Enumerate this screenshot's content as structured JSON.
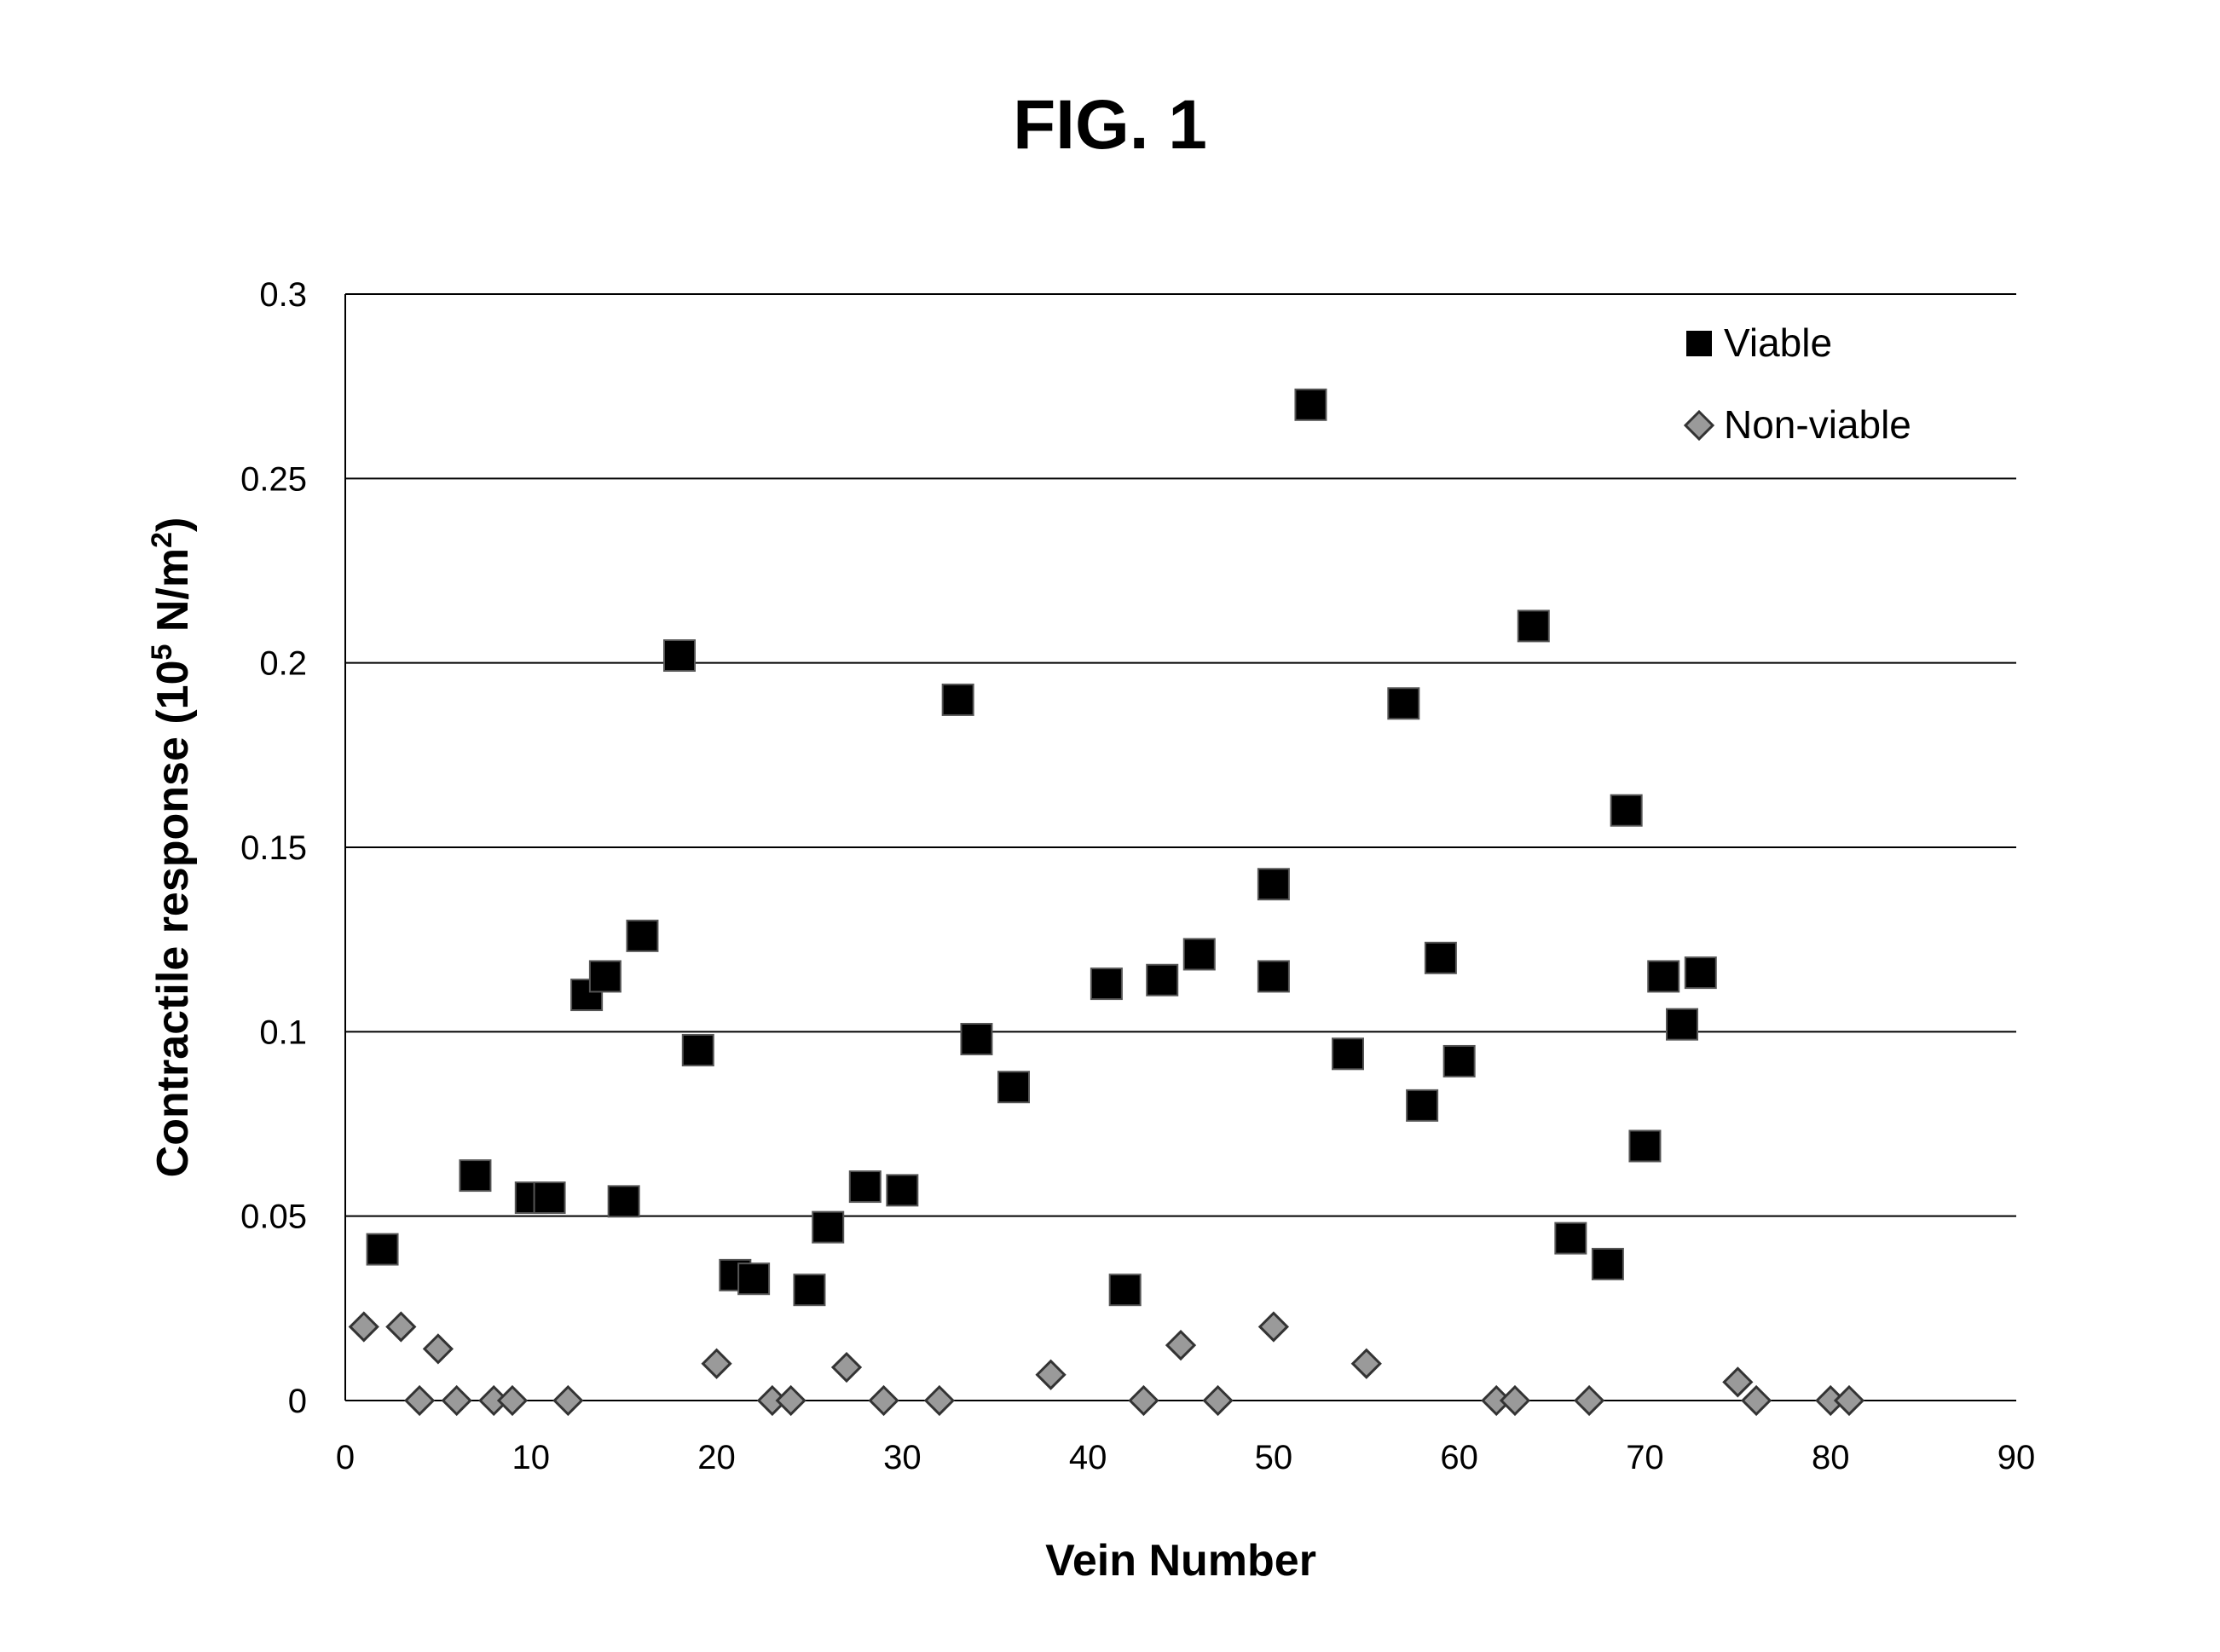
{
  "chart_data": {
    "type": "scatter",
    "title": "FIG. 1",
    "xlabel": "Vein Number",
    "ylabel_main": "Contractile response  (10",
    "ylabel_sup": "5",
    "ylabel_mid": " N/m",
    "ylabel_sup2": "2",
    "ylabel_end": ")",
    "xlim": [
      0,
      90
    ],
    "ylim": [
      0,
      0.3
    ],
    "xticks": [
      0,
      10,
      20,
      30,
      40,
      50,
      60,
      70,
      80,
      90
    ],
    "yticks": [
      0,
      0.05,
      0.1,
      0.15,
      0.2,
      0.25,
      0.3
    ],
    "ytick_labels": [
      "0",
      "0.05",
      "0.1",
      "0.15",
      "0.2",
      "0.25",
      "0.3"
    ],
    "grid": "horizontal",
    "legend_position": "top-right",
    "series": [
      {
        "name": "Viable",
        "marker": "square",
        "color": "#000000",
        "points": [
          [
            2,
            0.041
          ],
          [
            7,
            0.061
          ],
          [
            10,
            0.055
          ],
          [
            11,
            0.055
          ],
          [
            13,
            0.11
          ],
          [
            14,
            0.115
          ],
          [
            15,
            0.054
          ],
          [
            16,
            0.126
          ],
          [
            18,
            0.202
          ],
          [
            19,
            0.095
          ],
          [
            21,
            0.034
          ],
          [
            22,
            0.033
          ],
          [
            25,
            0.03
          ],
          [
            26,
            0.047
          ],
          [
            28,
            0.058
          ],
          [
            30,
            0.057
          ],
          [
            33,
            0.19
          ],
          [
            34,
            0.098
          ],
          [
            36,
            0.085
          ],
          [
            41,
            0.113
          ],
          [
            42,
            0.03
          ],
          [
            44,
            0.114
          ],
          [
            46,
            0.121
          ],
          [
            50,
            0.14
          ],
          [
            50,
            0.115
          ],
          [
            52,
            0.27
          ],
          [
            54,
            0.094
          ],
          [
            57,
            0.189
          ],
          [
            58,
            0.08
          ],
          [
            59,
            0.12
          ],
          [
            60,
            0.092
          ],
          [
            64,
            0.21
          ],
          [
            66,
            0.044
          ],
          [
            68,
            0.037
          ],
          [
            69,
            0.16
          ],
          [
            70,
            0.069
          ],
          [
            71,
            0.115
          ],
          [
            72,
            0.102
          ],
          [
            73,
            0.116
          ]
        ]
      },
      {
        "name": "Non-viable",
        "marker": "diamond",
        "color": "#9a9a9a",
        "points": [
          [
            1,
            0.02
          ],
          [
            3,
            0.02
          ],
          [
            4,
            0.0
          ],
          [
            5,
            0.014
          ],
          [
            6,
            0.0
          ],
          [
            8,
            0.0
          ],
          [
            9,
            0.0
          ],
          [
            12,
            0.0
          ],
          [
            20,
            0.01
          ],
          [
            23,
            0.0
          ],
          [
            24,
            0.0
          ],
          [
            27,
            0.009
          ],
          [
            29,
            0.0
          ],
          [
            32,
            0.0
          ],
          [
            38,
            0.007
          ],
          [
            43,
            0.0
          ],
          [
            45,
            0.015
          ],
          [
            47,
            0.0
          ],
          [
            50,
            0.02
          ],
          [
            55,
            0.01
          ],
          [
            62,
            0.0
          ],
          [
            63,
            0.0
          ],
          [
            67,
            0.0
          ],
          [
            75,
            0.005
          ],
          [
            76,
            0.0
          ],
          [
            80,
            0.0
          ],
          [
            81,
            0.0
          ]
        ]
      }
    ]
  }
}
